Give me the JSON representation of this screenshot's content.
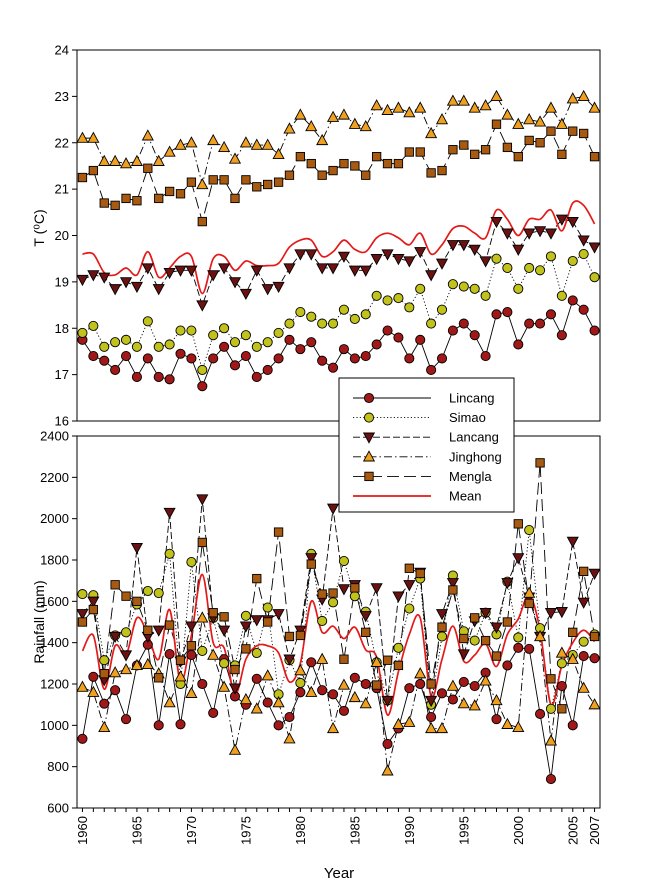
{
  "colors": {
    "Lincang": "#a01818",
    "Simao": "#c2c21c",
    "Lancang": "#6a1212",
    "Jinghong": "#f0a020",
    "Mengla": "#a85a10",
    "Mean": "#e41a1a"
  },
  "chart_data": [
    {
      "type": "line",
      "ylabel": "T (⁰C)",
      "ylim": [
        16,
        24
      ],
      "yticks": [
        16,
        17,
        18,
        19,
        20,
        21,
        22,
        23,
        24
      ],
      "xlim": [
        1959.5,
        2007.5
      ],
      "grid": false,
      "x": [
        1960,
        1961,
        1962,
        1963,
        1964,
        1965,
        1966,
        1967,
        1968,
        1969,
        1970,
        1971,
        1972,
        1973,
        1974,
        1975,
        1976,
        1977,
        1978,
        1979,
        1980,
        1981,
        1982,
        1983,
        1984,
        1985,
        1986,
        1987,
        1988,
        1989,
        1990,
        1991,
        1992,
        1993,
        1994,
        1995,
        1996,
        1997,
        1998,
        1999,
        2000,
        2001,
        2002,
        2003,
        2004,
        2005,
        2006,
        2007
      ],
      "series": [
        {
          "name": "Lincang",
          "marker": "circle",
          "line": "solid",
          "values": [
            17.75,
            17.4,
            17.3,
            17.1,
            17.4,
            16.95,
            17.35,
            16.95,
            16.9,
            17.45,
            17.35,
            16.75,
            17.35,
            17.6,
            17.2,
            17.4,
            16.95,
            17.1,
            17.35,
            17.75,
            17.55,
            17.7,
            17.3,
            17.15,
            17.55,
            17.35,
            17.4,
            17.65,
            17.95,
            17.8,
            17.35,
            17.75,
            17.1,
            17.35,
            17.95,
            18.1,
            17.85,
            17.4,
            18.3,
            18.35,
            17.65,
            18.1,
            18.1,
            18.3,
            17.85,
            18.6,
            18.4,
            17.95
          ]
        },
        {
          "name": "Simao",
          "marker": "circle",
          "line": "dotted",
          "values": [
            17.9,
            18.05,
            17.6,
            17.7,
            17.75,
            17.6,
            18.15,
            17.6,
            17.65,
            17.95,
            17.95,
            17.1,
            17.85,
            18.0,
            17.7,
            17.85,
            17.6,
            17.7,
            17.9,
            18.1,
            18.35,
            18.25,
            18.1,
            18.1,
            18.4,
            18.2,
            18.3,
            18.7,
            18.6,
            18.65,
            18.45,
            18.85,
            18.1,
            18.4,
            18.95,
            18.9,
            18.85,
            18.7,
            19.5,
            19.3,
            18.85,
            19.3,
            19.25,
            19.55,
            18.7,
            19.45,
            19.6,
            19.1
          ]
        },
        {
          "name": "Lancang",
          "marker": "triangle-down",
          "line": "dashed",
          "values": [
            19.05,
            19.15,
            19.1,
            18.85,
            19.0,
            18.9,
            19.3,
            18.85,
            19.2,
            19.25,
            19.25,
            18.5,
            19.15,
            19.3,
            19.0,
            18.75,
            19.25,
            18.85,
            18.9,
            19.3,
            19.6,
            19.6,
            19.3,
            19.3,
            19.55,
            19.25,
            19.25,
            19.5,
            19.6,
            19.5,
            19.45,
            19.65,
            19.15,
            19.4,
            19.8,
            19.8,
            19.7,
            19.45,
            20.3,
            20.05,
            19.7,
            20.05,
            20.1,
            20.05,
            20.35,
            20.3,
            19.9,
            19.75
          ]
        },
        {
          "name": "Jinghong",
          "marker": "triangle-up",
          "line": "dashdot",
          "values": [
            22.1,
            22.1,
            21.6,
            21.6,
            21.55,
            21.6,
            22.15,
            21.6,
            21.8,
            21.95,
            22.0,
            21.1,
            22.05,
            21.9,
            21.65,
            22.0,
            21.95,
            21.95,
            21.75,
            22.3,
            22.6,
            22.35,
            22.05,
            22.55,
            22.6,
            22.4,
            22.35,
            22.8,
            22.7,
            22.75,
            22.65,
            22.75,
            22.2,
            22.5,
            22.9,
            22.9,
            22.75,
            22.8,
            23.0,
            22.6,
            22.4,
            22.5,
            22.45,
            22.75,
            22.4,
            22.95,
            23.0,
            22.75
          ]
        },
        {
          "name": "Mengla",
          "marker": "square",
          "line": "longdash",
          "values": [
            21.25,
            21.4,
            20.7,
            20.65,
            20.8,
            20.75,
            21.45,
            20.8,
            20.95,
            20.9,
            21.15,
            20.3,
            21.2,
            21.2,
            20.8,
            21.2,
            21.05,
            21.1,
            21.15,
            21.3,
            21.7,
            21.55,
            21.3,
            21.4,
            21.55,
            21.5,
            21.3,
            21.7,
            21.55,
            21.55,
            21.8,
            21.8,
            21.35,
            21.4,
            21.85,
            21.95,
            21.75,
            21.85,
            22.4,
            21.9,
            21.7,
            22.05,
            22.0,
            22.25,
            21.75,
            22.25,
            22.2,
            21.7
          ]
        },
        {
          "name": "Mean",
          "marker": "none",
          "line": "smooth",
          "values": [
            19.6,
            19.6,
            19.2,
            19.15,
            19.3,
            19.15,
            19.65,
            19.1,
            19.3,
            19.55,
            19.55,
            18.75,
            19.5,
            19.55,
            19.25,
            19.45,
            19.35,
            19.35,
            19.4,
            19.75,
            19.9,
            19.9,
            19.55,
            19.65,
            19.9,
            19.7,
            19.65,
            19.95,
            20.05,
            19.95,
            19.8,
            20.05,
            19.6,
            19.8,
            20.15,
            20.2,
            20.05,
            19.95,
            20.55,
            20.35,
            20.0,
            20.35,
            20.35,
            20.55,
            20.1,
            20.7,
            20.65,
            20.25
          ]
        }
      ]
    },
    {
      "type": "line",
      "ylabel": "Rainfall (mm)",
      "xlabel": "Year",
      "ylim": [
        600,
        2400
      ],
      "yticks": [
        600,
        800,
        1000,
        1200,
        1400,
        1600,
        1800,
        2000,
        2200,
        2400
      ],
      "xlim": [
        1959.5,
        2007.5
      ],
      "xticks": [
        1960,
        1965,
        1970,
        1975,
        1980,
        1985,
        1990,
        1995,
        2000,
        2005,
        2007
      ],
      "legend": {
        "position": "top-right",
        "entries": [
          "Lincang",
          "Simao",
          "Lancang",
          "Jinghong",
          "Mengla",
          "Mean"
        ]
      },
      "grid": false,
      "x": [
        1960,
        1961,
        1962,
        1963,
        1964,
        1965,
        1966,
        1967,
        1968,
        1969,
        1970,
        1971,
        1972,
        1973,
        1974,
        1975,
        1976,
        1977,
        1978,
        1979,
        1980,
        1981,
        1982,
        1983,
        1984,
        1985,
        1986,
        1987,
        1988,
        1989,
        1990,
        1991,
        1992,
        1993,
        1994,
        1995,
        1996,
        1997,
        1998,
        1999,
        2000,
        2001,
        2002,
        2003,
        2004,
        2005,
        2006,
        2007
      ],
      "series": [
        {
          "name": "Lincang",
          "marker": "circle",
          "line": "solid",
          "values": [
            935,
            1235,
            1105,
            1170,
            1030,
            1290,
            1390,
            1000,
            1345,
            1005,
            1340,
            1200,
            1060,
            1320,
            1140,
            1100,
            1225,
            1110,
            1000,
            1040,
            1160,
            1305,
            1170,
            1150,
            1070,
            1230,
            1200,
            1180,
            910,
            985,
            1180,
            1200,
            1040,
            1155,
            1125,
            1210,
            1190,
            1255,
            1030,
            1290,
            1375,
            1370,
            1055,
            740,
            1190,
            1000,
            1335,
            1325
          ]
        },
        {
          "name": "Simao",
          "marker": "circle",
          "line": "dotted",
          "values": [
            1635,
            1630,
            1315,
            1435,
            1450,
            1585,
            1650,
            1640,
            1830,
            1200,
            1790,
            1360,
            1520,
            1300,
            1290,
            1530,
            1350,
            1570,
            1150,
            1315,
            1205,
            1830,
            1505,
            1595,
            1795,
            1625,
            1550,
            1305,
            1120,
            1375,
            1565,
            1710,
            1100,
            1430,
            1725,
            1455,
            1410,
            1545,
            1440,
            1695,
            1425,
            1945,
            1470,
            1080,
            1300,
            1340,
            1405,
            1440
          ]
        },
        {
          "name": "Lancang",
          "marker": "triangle-down",
          "line": "dashed",
          "values": [
            1540,
            1600,
            1220,
            1430,
            1340,
            1860,
            1430,
            1460,
            2030,
            1310,
            1480,
            2095,
            1520,
            1460,
            1180,
            1480,
            1510,
            1510,
            1540,
            1320,
            1460,
            1810,
            1610,
            2050,
            1660,
            1680,
            1530,
            1665,
            1120,
            1625,
            1680,
            1740,
            1120,
            1540,
            1690,
            1345,
            1505,
            1545,
            1475,
            1690,
            1810,
            1620,
            1430,
            1545,
            1550,
            1890,
            1595,
            1735
          ]
        },
        {
          "name": "Jinghong",
          "marker": "triangle-up",
          "line": "dashdot",
          "values": [
            1185,
            1160,
            990,
            1255,
            1270,
            1290,
            1295,
            1250,
            1110,
            1235,
            1155,
            1520,
            1340,
            1185,
            880,
            1125,
            1080,
            1240,
            1110,
            935,
            1265,
            1160,
            1320,
            985,
            1195,
            1135,
            1105,
            1305,
            780,
            1005,
            1015,
            1250,
            985,
            985,
            1190,
            1105,
            1095,
            1215,
            1120,
            1005,
            990,
            1640,
            1430,
            925,
            1350,
            1320,
            1180,
            1100
          ]
        },
        {
          "name": "Mengla",
          "marker": "square",
          "line": "longdash",
          "values": [
            1500,
            1560,
            1250,
            1680,
            1625,
            1600,
            1460,
            1230,
            1485,
            1315,
            1385,
            1885,
            1545,
            1525,
            1270,
            1370,
            1710,
            1500,
            1935,
            1430,
            1435,
            1780,
            1635,
            1640,
            1320,
            1665,
            1450,
            1195,
            1315,
            1290,
            1760,
            1735,
            1200,
            1475,
            1655,
            1420,
            1520,
            1410,
            1335,
            1500,
            1975,
            1590,
            2270,
            1225,
            1080,
            1450,
            1745,
            1430
          ]
        },
        {
          "name": "Mean",
          "marker": "none",
          "line": "smooth",
          "values": [
            1360,
            1435,
            1175,
            1385,
            1340,
            1520,
            1440,
            1320,
            1560,
            1210,
            1435,
            1730,
            1400,
            1375,
            1150,
            1320,
            1385,
            1385,
            1350,
            1210,
            1300,
            1600,
            1450,
            1480,
            1420,
            1475,
            1365,
            1330,
            1050,
            1260,
            1440,
            1520,
            1140,
            1320,
            1480,
            1310,
            1340,
            1395,
            1285,
            1440,
            1515,
            1630,
            1460,
            1100,
            1290,
            1400,
            1460,
            1405
          ]
        }
      ]
    }
  ]
}
